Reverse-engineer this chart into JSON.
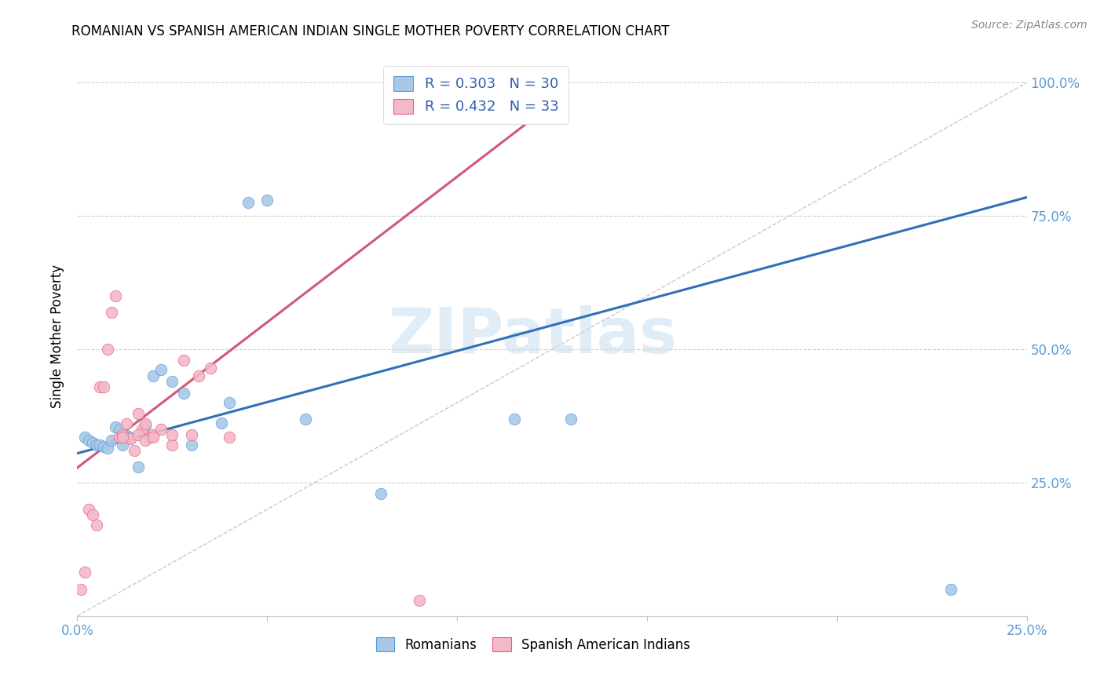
{
  "title": "ROMANIAN VS SPANISH AMERICAN INDIAN SINGLE MOTHER POVERTY CORRELATION CHART",
  "source": "Source: ZipAtlas.com",
  "ylabel": "Single Mother Poverty",
  "watermark": "ZIPatlas",
  "xlim": [
    0.0,
    0.25
  ],
  "ylim": [
    0.0,
    1.05
  ],
  "xticks": [
    0.0,
    0.05,
    0.1,
    0.15,
    0.2,
    0.25
  ],
  "xticklabels": [
    "0.0%",
    "",
    "",
    "",
    "",
    "25.0%"
  ],
  "yticks_right": [
    0.0,
    0.25,
    0.5,
    0.75,
    1.0
  ],
  "yticklabels_right": [
    "",
    "25.0%",
    "50.0%",
    "75.0%",
    "100.0%"
  ],
  "legend_label_blue": "Romanians",
  "legend_label_pink": "Spanish American Indians",
  "blue_color": "#a8c8e8",
  "pink_color": "#f4b8c8",
  "blue_edge_color": "#5b9bd5",
  "pink_edge_color": "#e06080",
  "blue_line_color": "#3070b8",
  "pink_line_color": "#d05878",
  "diag_line_color": "#c8c8c8",
  "tick_color": "#5b9bd5",
  "text_color": "#3060b0",
  "blue_scatter_x": [
    0.002,
    0.003,
    0.004,
    0.005,
    0.006,
    0.007,
    0.008,
    0.009,
    0.01,
    0.011,
    0.012,
    0.013,
    0.014,
    0.016,
    0.018,
    0.02,
    0.022,
    0.025,
    0.028,
    0.03,
    0.038,
    0.04,
    0.045,
    0.05,
    0.06,
    0.08,
    0.1,
    0.115,
    0.13,
    0.23
  ],
  "blue_scatter_y": [
    0.335,
    0.33,
    0.325,
    0.32,
    0.32,
    0.318,
    0.315,
    0.33,
    0.355,
    0.35,
    0.32,
    0.338,
    0.335,
    0.28,
    0.358,
    0.45,
    0.462,
    0.44,
    0.418,
    0.32,
    0.362,
    0.4,
    0.775,
    0.78,
    0.37,
    0.23,
    0.96,
    0.37,
    0.37,
    0.05
  ],
  "pink_scatter_x": [
    0.001,
    0.002,
    0.003,
    0.004,
    0.005,
    0.006,
    0.007,
    0.008,
    0.009,
    0.01,
    0.011,
    0.012,
    0.013,
    0.014,
    0.015,
    0.016,
    0.017,
    0.018,
    0.019,
    0.02,
    0.022,
    0.025,
    0.028,
    0.03,
    0.032,
    0.035,
    0.04,
    0.09,
    0.012,
    0.016,
    0.018,
    0.02,
    0.025
  ],
  "pink_scatter_y": [
    0.05,
    0.082,
    0.2,
    0.19,
    0.17,
    0.43,
    0.43,
    0.5,
    0.57,
    0.6,
    0.335,
    0.34,
    0.36,
    0.332,
    0.31,
    0.38,
    0.35,
    0.36,
    0.335,
    0.34,
    0.35,
    0.32,
    0.48,
    0.34,
    0.45,
    0.465,
    0.335,
    0.03,
    0.335,
    0.34,
    0.33,
    0.335,
    0.34
  ],
  "blue_line_x": [
    0.0,
    0.25
  ],
  "blue_line_y": [
    0.305,
    0.785
  ],
  "pink_line_x": [
    0.0,
    0.125
  ],
  "pink_line_y": [
    0.278,
    0.96
  ],
  "diag_line_x": [
    0.0,
    0.25
  ],
  "diag_line_y": [
    0.0,
    1.0
  ]
}
